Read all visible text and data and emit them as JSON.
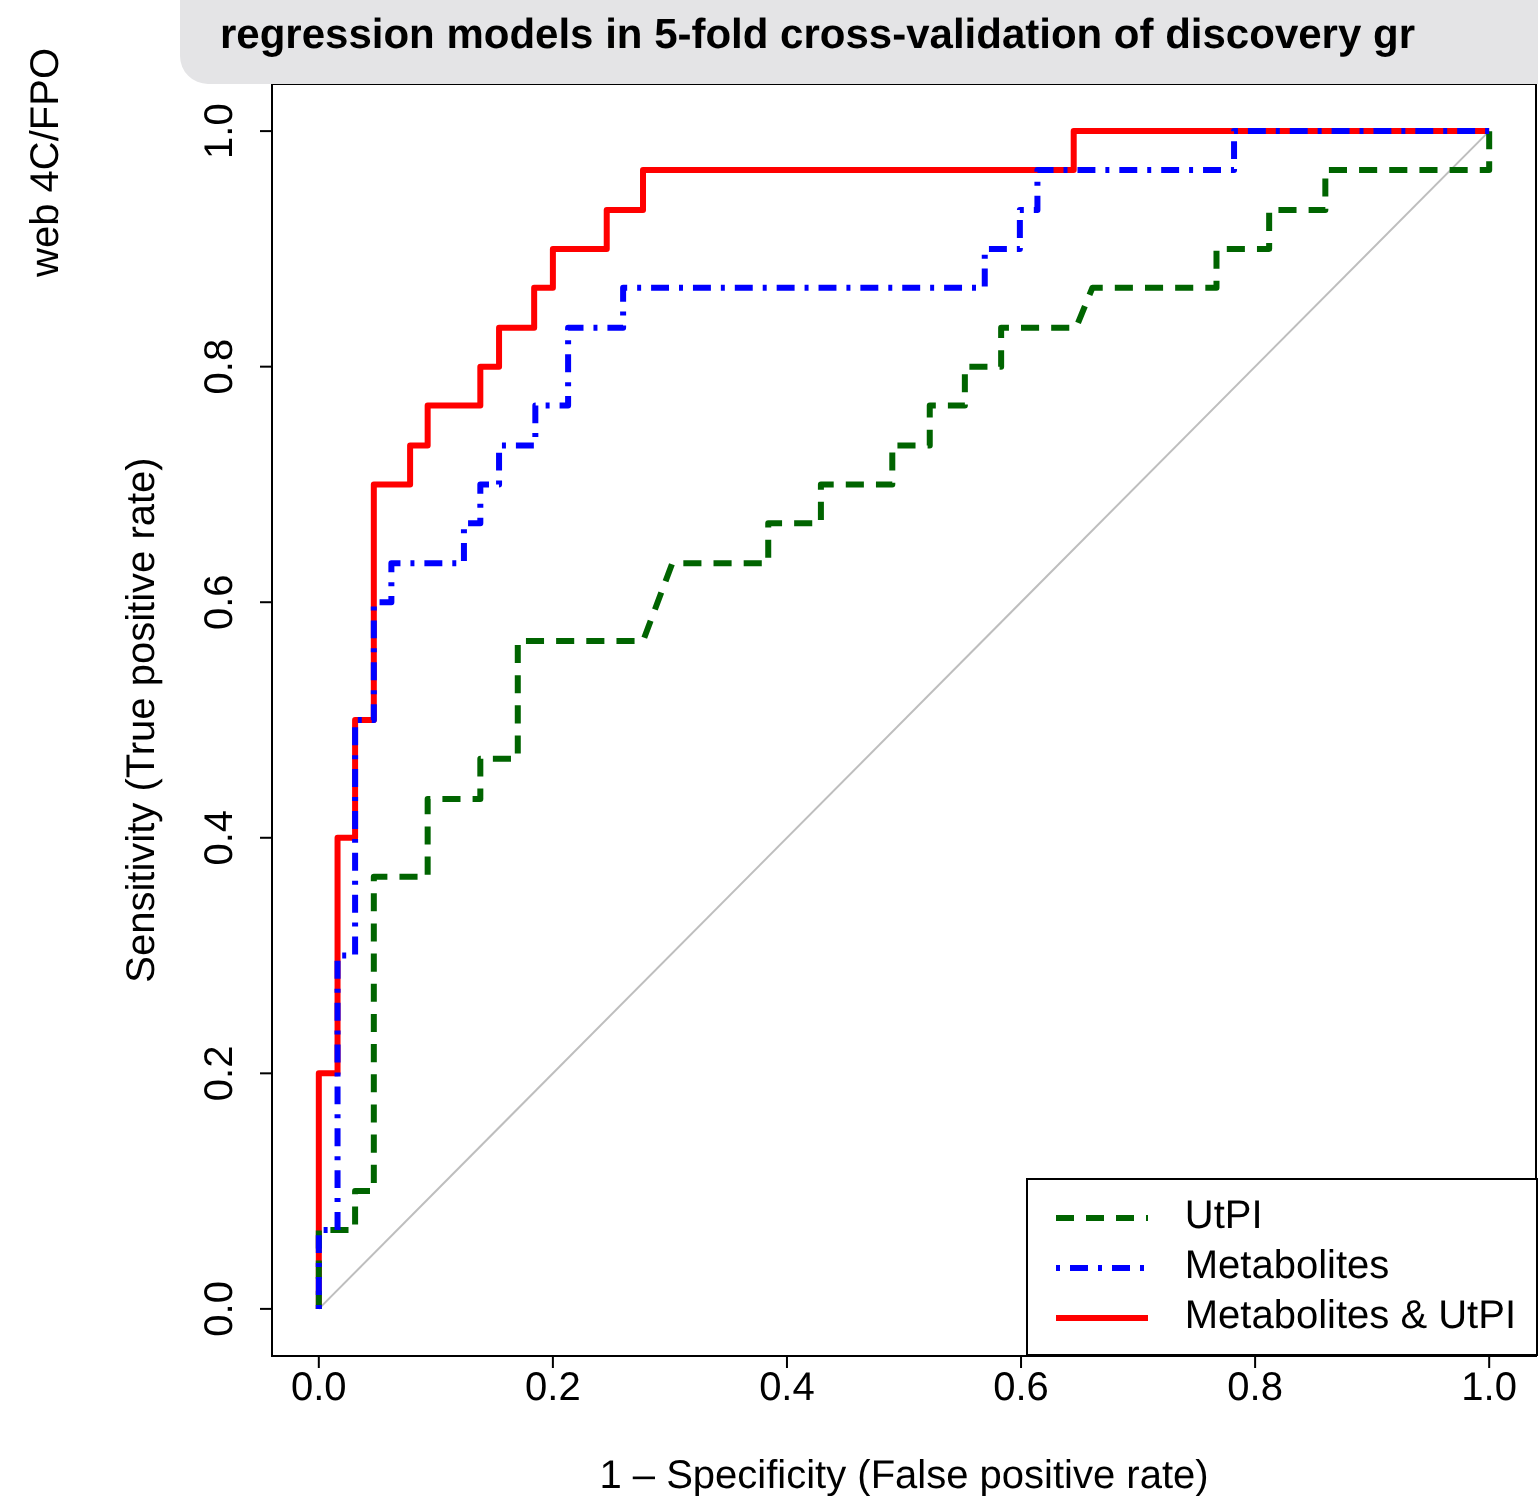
{
  "chart_data": {
    "type": "line",
    "title": "regression models in 5-fold cross-validation of discovery gr",
    "xlabel": "1 – Specificity (False positive rate)",
    "ylabel": "Sensitivity (True positive rate)",
    "annotations": [
      "web 4C/FPO"
    ],
    "xlim": [
      -0.04,
      1.04
    ],
    "ylim": [
      -0.04,
      1.04
    ],
    "xticks": [
      {
        "value": 0,
        "label": "0.0"
      },
      {
        "value": 0.2,
        "label": "0.2"
      },
      {
        "value": 0.4,
        "label": "0.4"
      },
      {
        "value": 0.6,
        "label": "0.6"
      },
      {
        "value": 0.8,
        "label": "0.8"
      },
      {
        "value": 1,
        "label": "1.0"
      }
    ],
    "yticks": [
      {
        "value": 0,
        "label": "0.0"
      },
      {
        "value": 0.2,
        "label": "0.2"
      },
      {
        "value": 0.4,
        "label": "0.4"
      },
      {
        "value": 0.6,
        "label": "0.6"
      },
      {
        "value": 0.8,
        "label": "0.8"
      },
      {
        "value": 1,
        "label": "1.0"
      }
    ],
    "grid": false,
    "legend": "bottom right",
    "marker": "none",
    "series": [
      {
        "name": null,
        "color": "#bebebe",
        "line_style": "solid",
        "x": [
          0,
          1
        ],
        "values": [
          0,
          1
        ]
      },
      {
        "name": "UtPI",
        "color": "#006400",
        "line_style": "dashed",
        "x": [
          0,
          0,
          0.031,
          0.031,
          0.047,
          0.047,
          0.093,
          0.093,
          0.138,
          0.138,
          0.17,
          0.17,
          0.277,
          0.302,
          0.384,
          0.384,
          0.429,
          0.429,
          0.49,
          0.49,
          0.522,
          0.522,
          0.552,
          0.552,
          0.583,
          0.583,
          0.647,
          0.661,
          0.767,
          0.767,
          0.812,
          0.812,
          0.86,
          0.86,
          1,
          1
        ],
        "values": [
          0,
          0.067,
          0.067,
          0.1,
          0.1,
          0.367,
          0.367,
          0.433,
          0.433,
          0.467,
          0.467,
          0.567,
          0.567,
          0.633,
          0.633,
          0.667,
          0.667,
          0.7,
          0.7,
          0.733,
          0.733,
          0.767,
          0.767,
          0.8,
          0.8,
          0.833,
          0.833,
          0.867,
          0.867,
          0.9,
          0.9,
          0.933,
          0.933,
          0.967,
          0.967,
          1
        ]
      },
      {
        "name": "Metabolites",
        "color": "#0000ff",
        "line_style": "dashdot",
        "x": [
          0,
          0,
          0.016,
          0.016,
          0.031,
          0.031,
          0.047,
          0.047,
          0.062,
          0.062,
          0.124,
          0.124,
          0.138,
          0.138,
          0.154,
          0.154,
          0.185,
          0.185,
          0.213,
          0.213,
          0.26,
          0.26,
          0.569,
          0.569,
          0.599,
          0.599,
          0.614,
          0.614,
          0.782,
          0.782,
          1
        ],
        "values": [
          0,
          0.067,
          0.067,
          0.3,
          0.3,
          0.5,
          0.5,
          0.6,
          0.6,
          0.633,
          0.633,
          0.667,
          0.667,
          0.7,
          0.7,
          0.733,
          0.733,
          0.767,
          0.767,
          0.833,
          0.833,
          0.867,
          0.867,
          0.9,
          0.9,
          0.933,
          0.933,
          0.967,
          0.967,
          1,
          1
        ]
      },
      {
        "name": "Metabolites & UtPI",
        "color": "#ff0000",
        "line_style": "solid",
        "x": [
          0,
          0,
          0.016,
          0.016,
          0.031,
          0.031,
          0.047,
          0.047,
          0.078,
          0.078,
          0.093,
          0.093,
          0.138,
          0.138,
          0.154,
          0.154,
          0.184,
          0.184,
          0.2,
          0.2,
          0.246,
          0.246,
          0.277,
          0.277,
          0.645,
          0.645,
          1
        ],
        "values": [
          0,
          0.2,
          0.2,
          0.4,
          0.4,
          0.5,
          0.5,
          0.7,
          0.7,
          0.733,
          0.733,
          0.767,
          0.767,
          0.8,
          0.8,
          0.833,
          0.833,
          0.867,
          0.867,
          0.9,
          0.9,
          0.933,
          0.933,
          0.967,
          0.967,
          1,
          1
        ]
      }
    ]
  }
}
